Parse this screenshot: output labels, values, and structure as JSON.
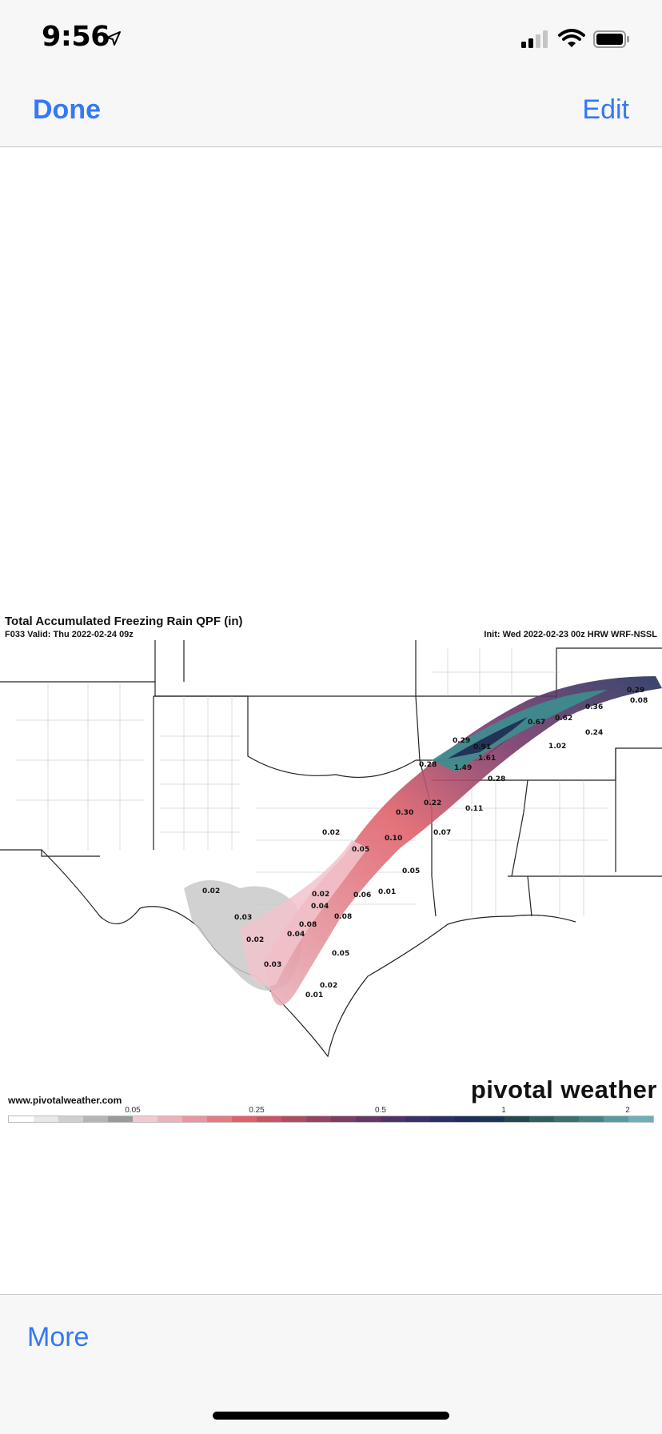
{
  "status_bar": {
    "time": "9:56",
    "location_icon": "location-arrow-icon",
    "signal_icon": "cellular-signal-icon",
    "wifi_icon": "wifi-icon",
    "battery_icon": "battery-icon"
  },
  "nav": {
    "done_label": "Done",
    "edit_label": "Edit"
  },
  "weather_map": {
    "title": "Total Accumulated Freezing Rain QPF (in)",
    "valid": "F033 Valid: Thu 2022-02-24 09z",
    "init": "Init: Wed 2022-02-23 00z HRW WRF-NSSL",
    "url": "www.pivotalweather.com",
    "brand": "pivotal weather",
    "colorbar_ticks": [
      "0.05",
      "0.25",
      "0.5",
      "1",
      "2"
    ],
    "accumulation_labels": [
      "0.29",
      "0.08",
      "0.36",
      "0.67",
      "0.62",
      "0.24",
      "0.29",
      "0.91",
      "1.61",
      "1.02",
      "0.28",
      "1.49",
      "0.28",
      "0.22",
      "0.30",
      "0.11",
      "0.02",
      "0.10",
      "0.07",
      "0.05",
      "0.05",
      "0.02",
      "0.02",
      "0.06",
      "0.01",
      "0.04",
      "0.03",
      "0.08",
      "0.08",
      "0.04",
      "0.02",
      "0.05",
      "0.03",
      "0.02",
      "0.01"
    ],
    "colors": {
      "rain_light": "#f2c4cc",
      "rain_mid": "#e0616b",
      "rain_heavy": "#1e2a52",
      "rain_peak": "#3b8f8f"
    }
  },
  "toolbar": {
    "more_label": "More"
  }
}
